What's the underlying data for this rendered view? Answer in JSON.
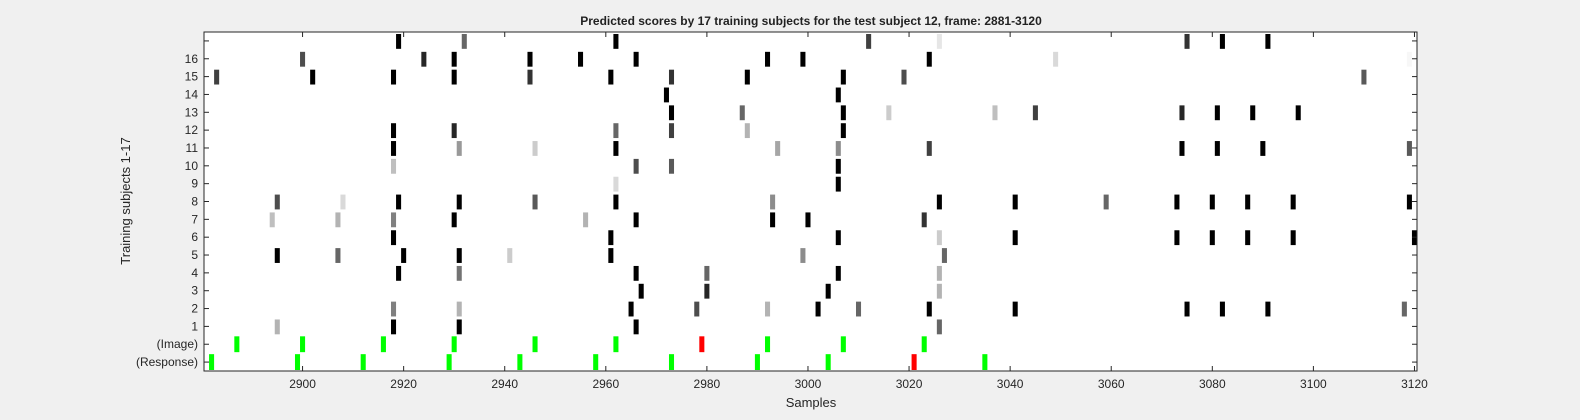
{
  "chart_data": {
    "type": "heatmap",
    "title": "Predicted scores by 17 training subjects for the test subject 12, frame: 2881-3120",
    "xlabel": "Samples",
    "ylabel": "Training subjects 1-17",
    "xlim": [
      2881,
      3120
    ],
    "xticks": [
      2900,
      2920,
      2940,
      2960,
      2980,
      3000,
      3020,
      3040,
      3060,
      3080,
      3100,
      3120
    ],
    "row_labels": [
      "(Response)",
      "(Image)",
      "1",
      "2",
      "3",
      "4",
      "5",
      "6",
      "7",
      "8",
      "9",
      "10",
      "11",
      "12",
      "13",
      "14",
      "15",
      "16",
      ""
    ],
    "colormap": "gray-inverted (white = 0, black = 1)",
    "colors": {
      "correct_marker": "#00ff00",
      "incorrect_marker": "#ff0000",
      "background": "#ffffff",
      "figure": "#f0f0f0"
    },
    "markers": [
      {
        "row": "(Response)",
        "color": "green",
        "x": [
          2882,
          2899,
          2912,
          2929,
          2943,
          2958,
          2973,
          2990,
          3004,
          3035
        ]
      },
      {
        "row": "(Response)",
        "color": "red",
        "x": [
          3021
        ]
      },
      {
        "row": "(Image)",
        "color": "green",
        "x": [
          2887,
          2900,
          2916,
          2930,
          2946,
          2962,
          2992,
          3007,
          3023
        ]
      },
      {
        "row": "(Image)",
        "color": "red",
        "x": [
          2979
        ]
      }
    ],
    "cells": [
      {
        "row": "1",
        "points": [
          [
            2895,
            0.3
          ],
          [
            2918,
            1.0
          ],
          [
            2931,
            1.0
          ],
          [
            2966,
            1.0
          ],
          [
            3026,
            0.6
          ]
        ]
      },
      {
        "row": "2",
        "points": [
          [
            2918,
            0.5
          ],
          [
            2931,
            0.3
          ],
          [
            2965,
            1.0
          ],
          [
            2978,
            0.7
          ],
          [
            2992,
            0.3
          ],
          [
            3002,
            1.0
          ],
          [
            3010,
            0.6
          ],
          [
            3024,
            1.0
          ],
          [
            3041,
            1.0
          ],
          [
            3075,
            1.0
          ],
          [
            3082,
            1.0
          ],
          [
            3091,
            1.0
          ],
          [
            3118,
            0.6
          ]
        ]
      },
      {
        "row": "3",
        "points": [
          [
            2967,
            1.0
          ],
          [
            2980,
            0.85
          ],
          [
            3004,
            1.0
          ],
          [
            3026,
            0.3
          ]
        ]
      },
      {
        "row": "4",
        "points": [
          [
            2919,
            1.0
          ],
          [
            2931,
            0.55
          ],
          [
            2966,
            1.0
          ],
          [
            2980,
            0.6
          ],
          [
            3006,
            1.0
          ],
          [
            3026,
            0.3
          ]
        ]
      },
      {
        "row": "5",
        "points": [
          [
            2895,
            1.0
          ],
          [
            2907,
            0.6
          ],
          [
            2920,
            1.0
          ],
          [
            2931,
            1.0
          ],
          [
            2941,
            0.2
          ],
          [
            2961,
            1.0
          ],
          [
            2999,
            0.45
          ],
          [
            3027,
            0.6
          ]
        ]
      },
      {
        "row": "6",
        "points": [
          [
            2918,
            1.0
          ],
          [
            2961,
            1.0
          ],
          [
            3006,
            1.0
          ],
          [
            3026,
            0.2
          ],
          [
            3041,
            1.0
          ],
          [
            3073,
            1.0
          ],
          [
            3080,
            1.0
          ],
          [
            3087,
            1.0
          ],
          [
            3096,
            1.0
          ],
          [
            3120,
            1.0
          ]
        ]
      },
      {
        "row": "7",
        "points": [
          [
            2894,
            0.25
          ],
          [
            2907,
            0.3
          ],
          [
            2918,
            0.5
          ],
          [
            2930,
            1.0
          ],
          [
            2956,
            0.3
          ],
          [
            2966,
            1.0
          ],
          [
            2993,
            1.0
          ],
          [
            3000,
            1.0
          ],
          [
            3023,
            0.8
          ]
        ]
      },
      {
        "row": "8",
        "points": [
          [
            2895,
            0.7
          ],
          [
            2908,
            0.15
          ],
          [
            2919,
            1.0
          ],
          [
            2931,
            1.0
          ],
          [
            2946,
            0.65
          ],
          [
            2962,
            1.0
          ],
          [
            2993,
            0.45
          ],
          [
            3026,
            1.0
          ],
          [
            3041,
            1.0
          ],
          [
            3059,
            0.6
          ],
          [
            3073,
            1.0
          ],
          [
            3080,
            1.0
          ],
          [
            3087,
            1.0
          ],
          [
            3096,
            1.0
          ],
          [
            3119,
            1.0
          ]
        ]
      },
      {
        "row": "9",
        "points": [
          [
            2962,
            0.15
          ],
          [
            3006,
            1.0
          ]
        ]
      },
      {
        "row": "10",
        "points": [
          [
            2918,
            0.25
          ],
          [
            2966,
            0.7
          ],
          [
            2973,
            0.65
          ],
          [
            3006,
            1.0
          ]
        ]
      },
      {
        "row": "11",
        "points": [
          [
            2918,
            1.0
          ],
          [
            2931,
            0.4
          ],
          [
            2946,
            0.2
          ],
          [
            2962,
            1.0
          ],
          [
            2994,
            0.35
          ],
          [
            3006,
            0.45
          ],
          [
            3024,
            0.75
          ],
          [
            3074,
            1.0
          ],
          [
            3081,
            1.0
          ],
          [
            3090,
            1.0
          ],
          [
            3119,
            0.65
          ]
        ]
      },
      {
        "row": "12",
        "points": [
          [
            2918,
            1.0
          ],
          [
            2930,
            0.85
          ],
          [
            2962,
            0.6
          ],
          [
            2973,
            0.75
          ],
          [
            2988,
            0.3
          ],
          [
            3007,
            1.0
          ]
        ]
      },
      {
        "row": "13",
        "points": [
          [
            2973,
            1.0
          ],
          [
            2987,
            0.6
          ],
          [
            3007,
            1.0
          ],
          [
            3016,
            0.2
          ],
          [
            3037,
            0.25
          ],
          [
            3045,
            0.75
          ],
          [
            3074,
            0.85
          ],
          [
            3081,
            1.0
          ],
          [
            3088,
            1.0
          ],
          [
            3097,
            1.0
          ]
        ]
      },
      {
        "row": "14",
        "points": [
          [
            2972,
            1.0
          ],
          [
            3006,
            1.0
          ]
        ]
      },
      {
        "row": "15",
        "points": [
          [
            2883,
            0.75
          ],
          [
            2902,
            1.0
          ],
          [
            2918,
            1.0
          ],
          [
            2930,
            1.0
          ],
          [
            2945,
            0.8
          ],
          [
            2961,
            1.0
          ],
          [
            2973,
            0.8
          ],
          [
            2988,
            1.0
          ],
          [
            3007,
            1.0
          ],
          [
            3019,
            0.7
          ],
          [
            3110,
            0.65
          ]
        ]
      },
      {
        "row": "16",
        "points": [
          [
            2900,
            0.7
          ],
          [
            2924,
            0.85
          ],
          [
            2930,
            1.0
          ],
          [
            2945,
            1.0
          ],
          [
            2955,
            1.0
          ],
          [
            2966,
            1.0
          ],
          [
            2992,
            1.0
          ],
          [
            2999,
            1.0
          ],
          [
            3024,
            1.0
          ],
          [
            3049,
            0.15
          ],
          [
            3119,
            0.03
          ]
        ]
      },
      {
        "row": "",
        "points": [
          [
            2919,
            1.0
          ],
          [
            2932,
            0.6
          ],
          [
            2962,
            1.0
          ],
          [
            3012,
            0.75
          ],
          [
            3026,
            0.1
          ],
          [
            3075,
            0.8
          ],
          [
            3082,
            1.0
          ],
          [
            3091,
            1.0
          ]
        ]
      }
    ]
  }
}
